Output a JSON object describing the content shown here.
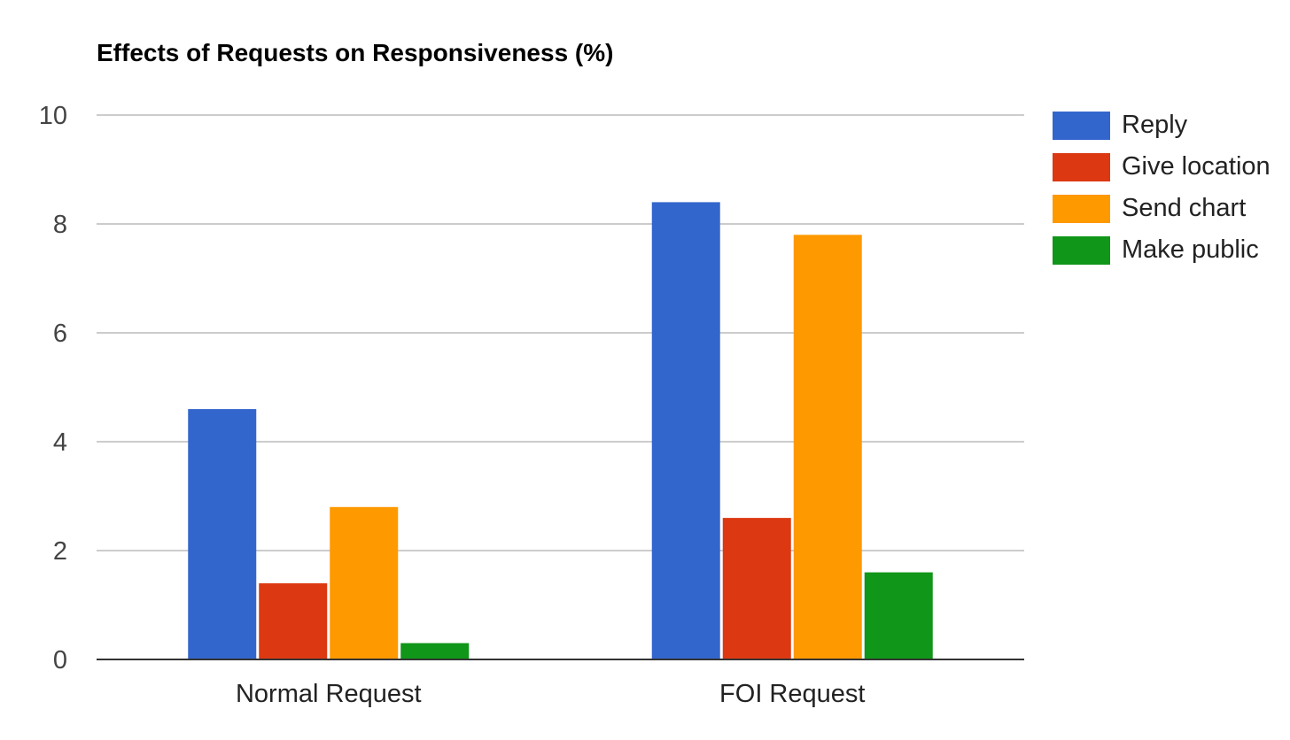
{
  "chart_data": {
    "type": "bar",
    "title": "Effects of Requests on Responsiveness (%)",
    "xlabel": "",
    "ylabel": "",
    "categories": [
      "Normal Request",
      "FOI Request"
    ],
    "series": [
      {
        "name": "Reply",
        "values": [
          4.6,
          8.4
        ],
        "color": "#3366cc"
      },
      {
        "name": "Give location",
        "values": [
          1.4,
          2.6
        ],
        "color": "#dc3912"
      },
      {
        "name": "Send chart",
        "values": [
          2.8,
          7.8
        ],
        "color": "#ff9900"
      },
      {
        "name": "Make public",
        "values": [
          0.3,
          1.6
        ],
        "color": "#109618"
      }
    ],
    "ylim": [
      0,
      10
    ],
    "yticks": [
      "0",
      "2",
      "4",
      "6",
      "8",
      "10"
    ],
    "grid": true,
    "legend_position": "right"
  }
}
